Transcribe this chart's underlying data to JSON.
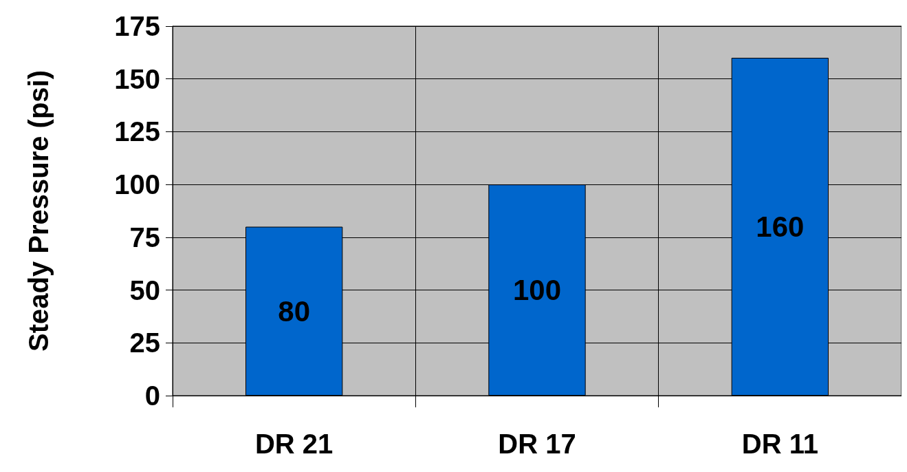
{
  "chart_data": {
    "type": "bar",
    "ylabel": "Steady Pressure (psi)",
    "categories": [
      "DR 21",
      "DR 17",
      "DR 11"
    ],
    "values": [
      80,
      100,
      160
    ],
    "color": "#0066cc",
    "ylim": [
      0,
      175
    ],
    "yticks": [
      0,
      25,
      50,
      75,
      100,
      125,
      150,
      175
    ],
    "grid": true,
    "data_labels": true
  }
}
